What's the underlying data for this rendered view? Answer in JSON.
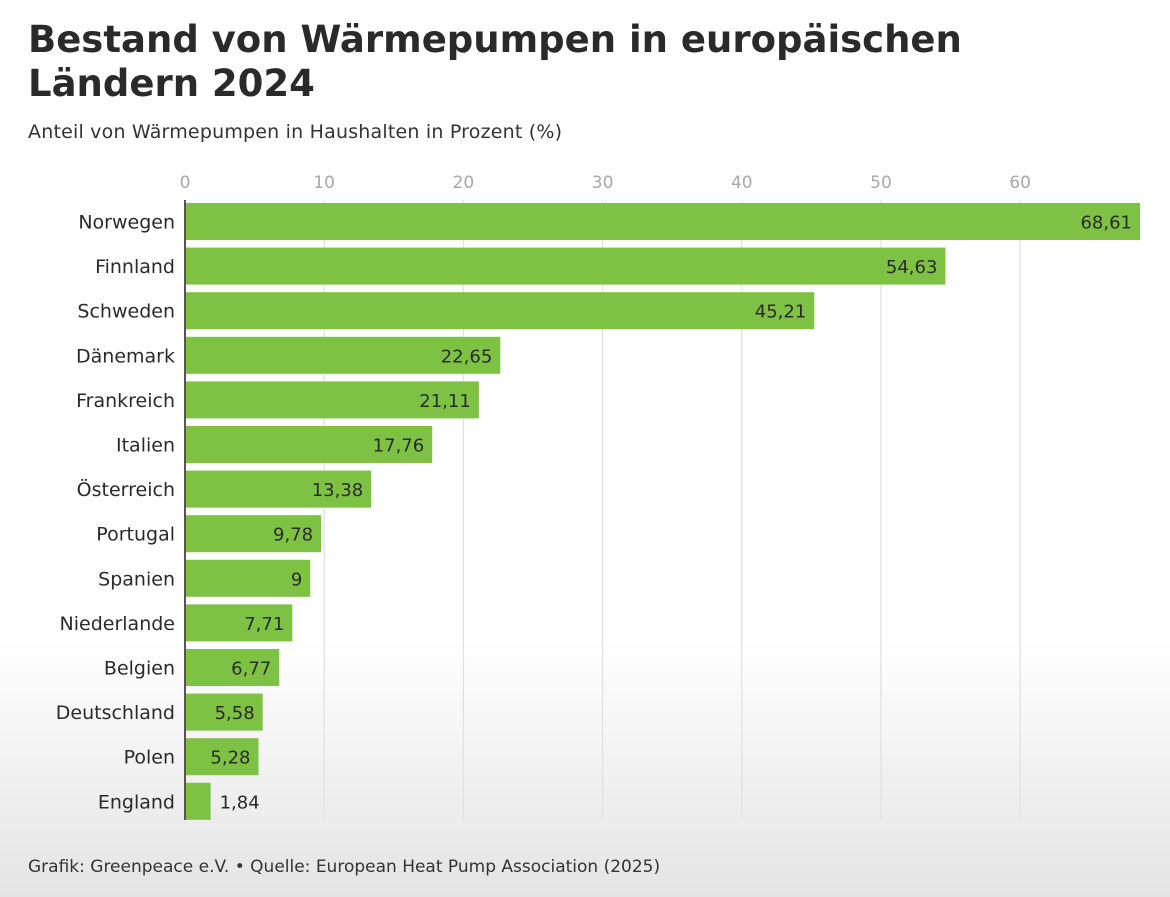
{
  "header": {
    "title": "Bestand von Wärmepumpen in europäischen Ländern 2024",
    "subtitle": "Anteil von Wärmepumpen in Haushalten in Prozent (%)"
  },
  "footer": {
    "source": "Grafik: Greenpeace e.V. • Quelle: European Heat Pump Association (2025)"
  },
  "colors": {
    "bar": "#7dc242",
    "grid": "#e2e2e2",
    "axis": "#555555"
  },
  "chart_data": {
    "type": "bar",
    "orientation": "horizontal",
    "title": "Bestand von Wärmepumpen in europäischen Ländern 2024",
    "subtitle": "Anteil von Wärmepumpen in Haushalten in Prozent (%)",
    "categories": [
      "Norwegen",
      "Finnland",
      "Schweden",
      "Dänemark",
      "Frankreich",
      "Italien",
      "Österreich",
      "Portugal",
      "Spanien",
      "Niederlande",
      "Belgien",
      "Deutschland",
      "Polen",
      "England"
    ],
    "values": [
      68.61,
      54.63,
      45.21,
      22.65,
      21.11,
      17.76,
      13.38,
      9.78,
      9,
      7.71,
      6.77,
      5.58,
      5.28,
      1.84
    ],
    "value_labels": [
      "68,61",
      "54,63",
      "45,21",
      "22,65",
      "21,11",
      "17,76",
      "13,38",
      "9,78",
      "9",
      "7,71",
      "6,77",
      "5,58",
      "5,28",
      "1,84"
    ],
    "x_ticks": [
      0,
      10,
      20,
      30,
      40,
      50,
      60
    ],
    "xlim": [
      0,
      68.61
    ],
    "xlabel": "",
    "ylabel": "",
    "grid": true,
    "axis_position": "top"
  }
}
